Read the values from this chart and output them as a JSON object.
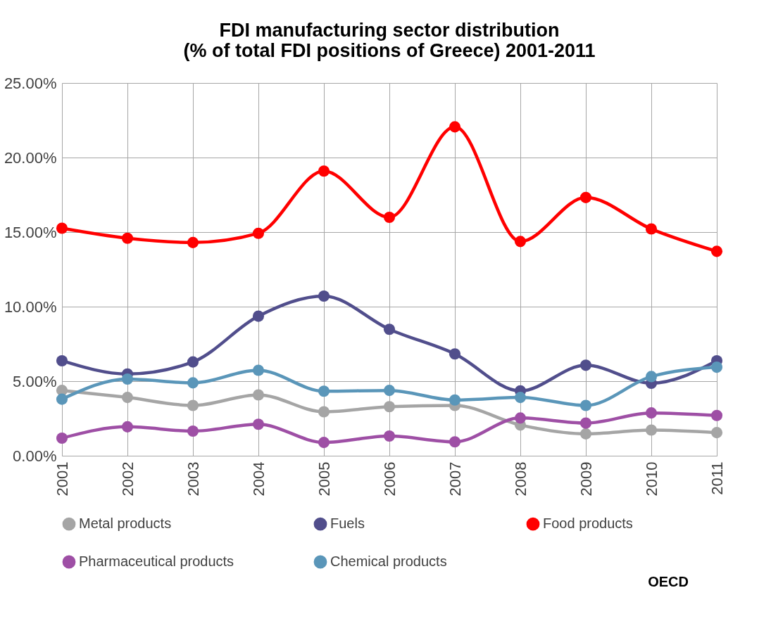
{
  "chart_data": {
    "type": "line",
    "title": "FDI manufacturing sector distribution\n(% of total FDI positions of Greece) 2001-2011",
    "categories": [
      "2001",
      "2002",
      "2003",
      "2004",
      "2005",
      "2006",
      "2007",
      "2008",
      "2009",
      "2010",
      "2011"
    ],
    "series": [
      {
        "name": "Metal products",
        "color": "#a5a5a5",
        "values": [
          4.38,
          3.91,
          3.37,
          4.08,
          2.95,
          3.29,
          3.37,
          2.06,
          1.47,
          1.72,
          1.55
        ]
      },
      {
        "name": "Fuels",
        "color": "#514e8c",
        "values": [
          6.37,
          5.48,
          6.29,
          9.36,
          10.71,
          8.48,
          6.83,
          4.35,
          6.07,
          4.86,
          6.37
        ]
      },
      {
        "name": "Food products",
        "color": "#ff0000",
        "values": [
          15.26,
          14.59,
          14.3,
          14.92,
          19.09,
          15.99,
          22.06,
          14.37,
          17.32,
          15.21,
          13.71
        ]
      },
      {
        "name": "Pharmaceutical products",
        "color": "#9e4fa5",
        "values": [
          1.18,
          1.94,
          1.65,
          2.11,
          0.89,
          1.32,
          0.93,
          2.53,
          2.19,
          2.87,
          2.7
        ]
      },
      {
        "name": "Chemical products",
        "color": "#5a96b9",
        "values": [
          3.79,
          5.14,
          4.89,
          5.73,
          4.33,
          4.38,
          3.74,
          3.91,
          3.37,
          5.31,
          5.94
        ]
      }
    ],
    "ylim": [
      0,
      25
    ],
    "yticks": [
      {
        "value": 0,
        "label": "0.00%"
      },
      {
        "value": 5,
        "label": "5.00%"
      },
      {
        "value": 10,
        "label": "10.00%"
      },
      {
        "value": 15,
        "label": "15.00%"
      },
      {
        "value": 20,
        "label": "20.00%"
      },
      {
        "value": 25,
        "label": "25.00%"
      }
    ],
    "grid": true,
    "legend": "bottom",
    "marker": "circle",
    "line_style": "solid",
    "annotations": [
      "OECD"
    ]
  }
}
